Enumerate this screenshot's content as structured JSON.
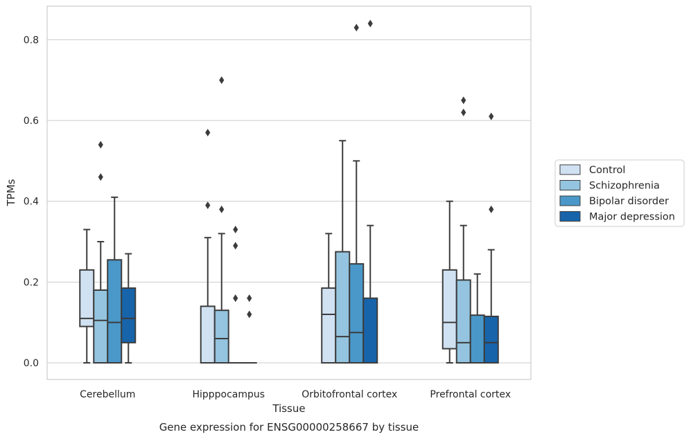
{
  "chart_data": {
    "type": "box",
    "caption": "Gene expression for ENSG00000258667 by tissue",
    "xlabel": "Tissue",
    "ylabel": "TPMs",
    "ylim": [
      -0.04,
      0.885
    ],
    "yticks": [
      0.0,
      0.2,
      0.4,
      0.6,
      0.8
    ],
    "ytick_labels": [
      "0.0",
      "0.2",
      "0.4",
      "0.6",
      "0.8"
    ],
    "grid": "horizontal",
    "legend_position": "right",
    "categories": [
      "Cerebellum",
      "Hipppocampus",
      "Orbitofrontal cortex",
      "Prefrontal cortex"
    ],
    "series": [
      {
        "name": "Control",
        "color": "#d0e1f2",
        "boxes": [
          {
            "whislo": 0.0,
            "q1": 0.09,
            "med": 0.11,
            "q3": 0.23,
            "whishi": 0.33,
            "fliers": []
          },
          {
            "whislo": 0.0,
            "q1": 0.0,
            "med": 0.0,
            "q3": 0.14,
            "whishi": 0.31,
            "fliers": [
              0.39,
              0.57
            ]
          },
          {
            "whislo": 0.0,
            "q1": 0.0,
            "med": 0.12,
            "q3": 0.185,
            "whishi": 0.32,
            "fliers": []
          },
          {
            "whislo": 0.0,
            "q1": 0.035,
            "med": 0.1,
            "q3": 0.23,
            "whishi": 0.4,
            "fliers": []
          }
        ]
      },
      {
        "name": "Schizophrenia",
        "color": "#94c4df",
        "boxes": [
          {
            "whislo": 0.0,
            "q1": 0.0,
            "med": 0.105,
            "q3": 0.18,
            "whishi": 0.3,
            "fliers": [
              0.46,
              0.54
            ]
          },
          {
            "whislo": 0.0,
            "q1": 0.0,
            "med": 0.06,
            "q3": 0.13,
            "whishi": 0.32,
            "fliers": [
              0.38,
              0.7
            ]
          },
          {
            "whislo": 0.0,
            "q1": 0.0,
            "med": 0.065,
            "q3": 0.275,
            "whishi": 0.55,
            "fliers": []
          },
          {
            "whislo": 0.0,
            "q1": 0.0,
            "med": 0.05,
            "q3": 0.205,
            "whishi": 0.34,
            "fliers": [
              0.62,
              0.65
            ]
          }
        ]
      },
      {
        "name": "Bipolar disorder",
        "color": "#4a98c9",
        "boxes": [
          {
            "whislo": 0.0,
            "q1": 0.0,
            "med": 0.1,
            "q3": 0.255,
            "whishi": 0.41,
            "fliers": []
          },
          {
            "whislo": 0.0,
            "q1": 0.0,
            "med": 0.0,
            "q3": 0.0,
            "whishi": 0.0,
            "fliers": [
              0.16,
              0.29,
              0.33
            ]
          },
          {
            "whislo": 0.0,
            "q1": 0.0,
            "med": 0.075,
            "q3": 0.245,
            "whishi": 0.5,
            "fliers": [
              0.83
            ]
          },
          {
            "whislo": 0.0,
            "q1": 0.0,
            "med": 0.0,
            "q3": 0.118,
            "whishi": 0.22,
            "fliers": []
          }
        ]
      },
      {
        "name": "Major depression",
        "color": "#1764ab",
        "boxes": [
          {
            "whislo": 0.0,
            "q1": 0.05,
            "med": 0.11,
            "q3": 0.185,
            "whishi": 0.27,
            "fliers": []
          },
          {
            "whislo": 0.0,
            "q1": 0.0,
            "med": 0.0,
            "q3": 0.0,
            "whishi": 0.0,
            "fliers": [
              0.12,
              0.16
            ]
          },
          {
            "whislo": 0.0,
            "q1": 0.0,
            "med": 0.0,
            "q3": 0.16,
            "whishi": 0.34,
            "fliers": [
              0.84
            ]
          },
          {
            "whislo": 0.0,
            "q1": 0.0,
            "med": 0.05,
            "q3": 0.115,
            "whishi": 0.28,
            "fliers": [
              0.38,
              0.61
            ]
          }
        ]
      }
    ]
  }
}
